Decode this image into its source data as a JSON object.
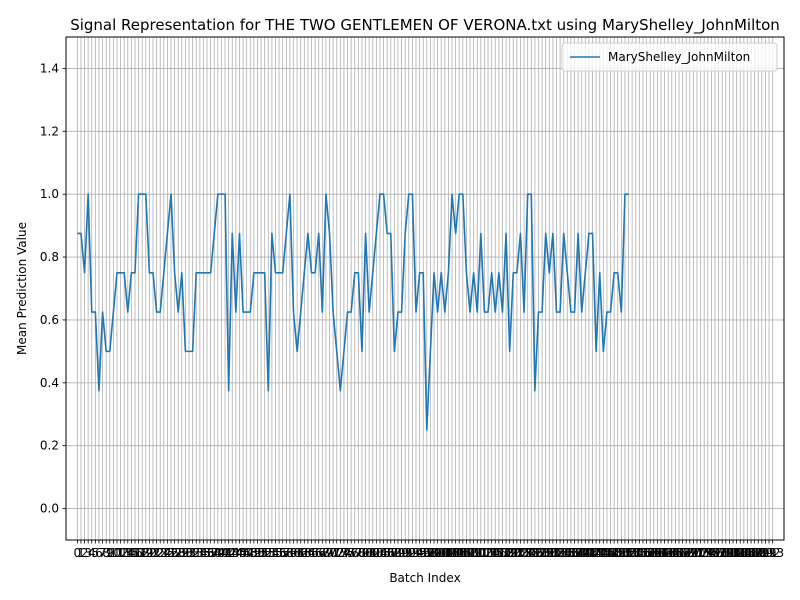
{
  "chart_data": {
    "type": "line",
    "title": "Signal Representation for THE TWO GENTLEMEN OF VERONA.txt using MaryShelley_JohnMilton",
    "xlabel": "Batch Index",
    "ylabel": "Mean Prediction Value",
    "xlim": [
      -3.15,
      196.15
    ],
    "ylim": [
      -0.1,
      1.5
    ],
    "yticks": [
      0.0,
      0.2,
      0.4,
      0.6,
      0.8,
      1.0,
      1.2,
      1.4
    ],
    "xtick_count": 194,
    "grid": true,
    "legend_position": "upper right",
    "series": [
      {
        "name": "MaryShelley_JohnMilton",
        "color": "#1f77b4",
        "values": [
          0.875,
          0.875,
          0.75,
          1.0,
          0.625,
          0.625,
          0.375,
          0.625,
          0.5,
          0.5,
          0.625,
          0.75,
          0.75,
          0.75,
          0.625,
          0.75,
          0.75,
          1.0,
          1.0,
          1.0,
          0.75,
          0.75,
          0.625,
          0.625,
          0.75,
          0.875,
          1.0,
          0.75,
          0.625,
          0.75,
          0.5,
          0.5,
          0.5,
          0.75,
          0.75,
          0.75,
          0.75,
          0.75,
          0.875,
          1.0,
          1.0,
          1.0,
          0.375,
          0.875,
          0.625,
          0.875,
          0.625,
          0.625,
          0.625,
          0.75,
          0.75,
          0.75,
          0.75,
          0.375,
          0.875,
          0.75,
          0.75,
          0.75,
          0.875,
          1.0,
          0.625,
          0.5,
          0.625,
          0.75,
          0.875,
          0.75,
          0.75,
          0.875,
          0.625,
          1.0,
          0.875,
          0.625,
          0.5,
          0.375,
          0.5,
          0.625,
          0.625,
          0.75,
          0.75,
          0.5,
          0.875,
          0.625,
          0.75,
          0.875,
          1.0,
          1.0,
          0.875,
          0.875,
          0.5,
          0.625,
          0.625,
          0.875,
          1.0,
          1.0,
          0.625,
          0.75,
          0.75,
          0.25,
          0.5,
          0.75,
          0.625,
          0.75,
          0.625,
          0.75,
          1.0,
          0.875,
          1.0,
          1.0,
          0.75,
          0.625,
          0.75,
          0.625,
          0.875,
          0.625,
          0.625,
          0.75,
          0.625,
          0.75,
          0.625,
          0.875,
          0.5,
          0.75,
          0.75,
          0.875,
          0.625,
          1.0,
          1.0,
          0.375,
          0.625,
          0.625,
          0.875,
          0.75,
          0.875,
          0.625,
          0.625,
          0.875,
          0.75,
          0.625,
          0.625,
          0.875,
          0.625,
          0.75,
          0.875,
          0.875,
          0.5,
          0.75,
          0.5,
          0.625,
          0.625,
          0.75,
          0.75,
          0.625,
          1.0,
          1.0
        ]
      }
    ]
  }
}
